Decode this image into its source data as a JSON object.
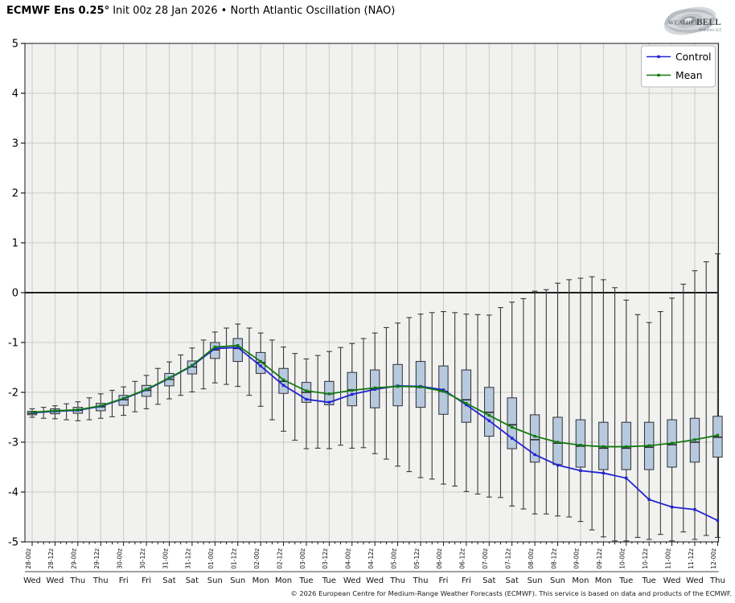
{
  "header": {
    "title_model": "ECMWF Ens 0.25°",
    "title_info": " Init 00z 28 Jan 2026 • North Atlantic Oscillation (NAO)"
  },
  "logo": {
    "brand_weather": "Weather",
    "brand_bell": "BELL",
    "brand_sub": "Analytics LLC"
  },
  "legend": {
    "items": [
      {
        "label": "Control",
        "color": "#2323d4"
      },
      {
        "label": "Mean",
        "color": "#117a11"
      }
    ]
  },
  "footer": {
    "text": "© 2026 European Centre for Medium-Range Weather Forecasts (ECMWF). This service is based on data and products of the ECMWF."
  },
  "chart_data": {
    "type": "box-line",
    "title": "ECMWF Ens 0.25 Init 00z 28 Jan 2026 - North Atlantic Oscillation (NAO)",
    "ylabel": "",
    "ylim": [
      -5,
      5
    ],
    "yticks": [
      -5,
      -4,
      -3,
      -2,
      -1,
      0,
      1,
      2,
      3,
      4,
      5
    ],
    "plot_bg": "#f1f1ef",
    "grid_color": "#cacaca",
    "zero_line_color": "#000000",
    "x_labels": [
      "28-00z",
      "28-12z",
      "29-00z",
      "29-12z",
      "30-00z",
      "30-12z",
      "31-00z",
      "31-12z",
      "01-00z",
      "01-12z",
      "02-00z",
      "02-12z",
      "03-00z",
      "03-12z",
      "04-00z",
      "04-12z",
      "05-00z",
      "05-12z",
      "06-00z",
      "06-12z",
      "07-00z",
      "07-12z",
      "08-00z",
      "08-12z",
      "09-00z",
      "09-12z",
      "10-00z",
      "10-12z",
      "11-00z",
      "11-12z",
      "12-00z"
    ],
    "day_labels": [
      "Wed",
      "Wed",
      "Thu",
      "Thu",
      "Fri",
      "Fri",
      "Sat",
      "Sat",
      "Sun",
      "Sun",
      "Mon",
      "Mon",
      "Tue",
      "Tue",
      "Wed",
      "Wed",
      "Thu",
      "Thu",
      "Fri",
      "Fri",
      "Sat",
      "Sat",
      "Sun",
      "Sun",
      "Mon",
      "Mon",
      "Tue",
      "Tue",
      "Wed",
      "Wed",
      "Thu"
    ],
    "series": [
      {
        "name": "Control",
        "color": "#2323d4",
        "values": [
          -2.41,
          -2.38,
          -2.36,
          -2.28,
          -2.13,
          -1.95,
          -1.72,
          -1.47,
          -1.12,
          -1.1,
          -1.47,
          -1.86,
          -2.14,
          -2.2,
          -2.04,
          -1.94,
          -1.87,
          -1.88,
          -1.95,
          -2.25,
          -2.57,
          -2.92,
          -3.25,
          -3.46,
          -3.57,
          -3.62,
          -3.72,
          -4.15,
          -4.3,
          -4.35,
          -4.57
        ]
      },
      {
        "name": "Mean",
        "color": "#117a11",
        "values": [
          -2.4,
          -2.37,
          -2.35,
          -2.27,
          -2.12,
          -1.94,
          -1.71,
          -1.46,
          -1.09,
          -1.06,
          -1.38,
          -1.75,
          -1.97,
          -2.03,
          -1.96,
          -1.91,
          -1.88,
          -1.89,
          -1.98,
          -2.22,
          -2.46,
          -2.7,
          -2.88,
          -3.0,
          -3.06,
          -3.09,
          -3.09,
          -3.07,
          -3.02,
          -2.95,
          -2.86
        ]
      }
    ],
    "boxes": {
      "width": 11.4,
      "fill": "#b7c9de",
      "stroke": "#303030",
      "median_color": "#1a1a1a",
      "q3": [
        -2.38,
        -2.33,
        -2.3,
        -2.22,
        -2.06,
        -1.86,
        -1.62,
        -1.37,
        -1.0,
        -0.92,
        -1.2,
        -1.52,
        -1.8,
        -1.78,
        -1.6,
        -1.55,
        -1.44,
        -1.38,
        -1.47,
        -1.55,
        -1.9,
        -2.11,
        -2.45,
        -2.5,
        -2.55,
        -2.6,
        -2.6,
        -2.6,
        -2.55,
        -2.52,
        -2.48
      ],
      "q1": [
        -2.45,
        -2.43,
        -2.42,
        -2.37,
        -2.26,
        -2.08,
        -1.87,
        -1.63,
        -1.32,
        -1.38,
        -1.62,
        -2.02,
        -2.2,
        -2.25,
        -2.27,
        -2.31,
        -2.27,
        -2.3,
        -2.44,
        -2.6,
        -2.88,
        -3.13,
        -3.4,
        -3.45,
        -3.5,
        -3.55,
        -3.55,
        -3.55,
        -3.5,
        -3.4,
        -3.3
      ],
      "median": [
        -2.42,
        -2.38,
        -2.36,
        -2.29,
        -2.15,
        -1.96,
        -1.74,
        -1.49,
        -1.15,
        -1.12,
        -1.4,
        -1.78,
        -2.0,
        -2.03,
        -1.95,
        -1.93,
        -1.88,
        -1.9,
        -1.98,
        -2.15,
        -2.4,
        -2.65,
        -2.95,
        -3.02,
        -3.08,
        -3.12,
        -3.12,
        -3.1,
        -3.05,
        -3.0,
        -2.9
      ]
    },
    "whiskers": {
      "step_hours": 6,
      "color": "#3a3a3a",
      "hi": [
        -2.33,
        -2.3,
        -2.27,
        -2.23,
        -2.19,
        -2.11,
        -2.03,
        -1.96,
        -1.89,
        -1.78,
        -1.66,
        -1.52,
        -1.39,
        -1.25,
        -1.11,
        -0.95,
        -0.79,
        -0.71,
        -0.63,
        -0.71,
        -0.81,
        -0.95,
        -1.09,
        -1.22,
        -1.33,
        -1.26,
        -1.18,
        -1.1,
        -1.02,
        -0.92,
        -0.81,
        -0.7,
        -0.61,
        -0.5,
        -0.43,
        -0.4,
        -0.38,
        -0.4,
        -0.43,
        -0.44,
        -0.45,
        -0.3,
        -0.19,
        -0.12,
        0.03,
        0.06,
        0.19,
        0.26,
        0.29,
        0.32,
        0.26,
        0.1,
        -0.15,
        -0.44,
        -0.6,
        -0.38,
        -0.11,
        0.17,
        0.44,
        0.62,
        0.78
      ],
      "lo": [
        -2.5,
        -2.52,
        -2.53,
        -2.55,
        -2.57,
        -2.55,
        -2.52,
        -2.49,
        -2.46,
        -2.39,
        -2.33,
        -2.24,
        -2.13,
        -2.06,
        -1.99,
        -1.93,
        -1.81,
        -1.84,
        -1.88,
        -2.06,
        -2.28,
        -2.55,
        -2.78,
        -2.96,
        -3.13,
        -3.12,
        -3.13,
        -3.06,
        -3.12,
        -3.11,
        -3.23,
        -3.34,
        -3.48,
        -3.59,
        -3.71,
        -3.74,
        -3.84,
        -3.88,
        -3.99,
        -4.04,
        -4.1,
        -4.11,
        -4.28,
        -4.34,
        -4.44,
        -4.44,
        -4.48,
        -4.5,
        -4.59,
        -4.76,
        -4.9,
        -4.98,
        -4.98,
        -4.91,
        -4.95,
        -4.85,
        -4.98,
        -4.8,
        -4.95,
        -4.87,
        -4.91
      ]
    }
  }
}
